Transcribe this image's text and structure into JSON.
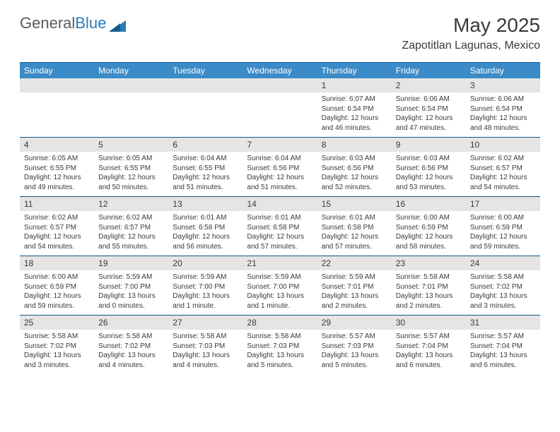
{
  "logo": {
    "part1": "General",
    "part2": "Blue"
  },
  "title": "May 2025",
  "location": "Zapotitlan Lagunas, Mexico",
  "colors": {
    "header_bar": "#3b8bc8",
    "daynum_bg": "#e5e5e5",
    "divider": "#0e5a8a",
    "text": "#3a3a3a",
    "logo_gray": "#5a5a5a",
    "logo_blue": "#2a7ab8"
  },
  "weekdays": [
    "Sunday",
    "Monday",
    "Tuesday",
    "Wednesday",
    "Thursday",
    "Friday",
    "Saturday"
  ],
  "weeks": [
    [
      null,
      null,
      null,
      null,
      {
        "n": "1",
        "sunrise": "6:07 AM",
        "sunset": "6:54 PM",
        "daylight": "12 hours and 46 minutes."
      },
      {
        "n": "2",
        "sunrise": "6:06 AM",
        "sunset": "6:54 PM",
        "daylight": "12 hours and 47 minutes."
      },
      {
        "n": "3",
        "sunrise": "6:06 AM",
        "sunset": "6:54 PM",
        "daylight": "12 hours and 48 minutes."
      }
    ],
    [
      {
        "n": "4",
        "sunrise": "6:05 AM",
        "sunset": "6:55 PM",
        "daylight": "12 hours and 49 minutes."
      },
      {
        "n": "5",
        "sunrise": "6:05 AM",
        "sunset": "6:55 PM",
        "daylight": "12 hours and 50 minutes."
      },
      {
        "n": "6",
        "sunrise": "6:04 AM",
        "sunset": "6:55 PM",
        "daylight": "12 hours and 51 minutes."
      },
      {
        "n": "7",
        "sunrise": "6:04 AM",
        "sunset": "6:56 PM",
        "daylight": "12 hours and 51 minutes."
      },
      {
        "n": "8",
        "sunrise": "6:03 AM",
        "sunset": "6:56 PM",
        "daylight": "12 hours and 52 minutes."
      },
      {
        "n": "9",
        "sunrise": "6:03 AM",
        "sunset": "6:56 PM",
        "daylight": "12 hours and 53 minutes."
      },
      {
        "n": "10",
        "sunrise": "6:02 AM",
        "sunset": "6:57 PM",
        "daylight": "12 hours and 54 minutes."
      }
    ],
    [
      {
        "n": "11",
        "sunrise": "6:02 AM",
        "sunset": "6:57 PM",
        "daylight": "12 hours and 54 minutes."
      },
      {
        "n": "12",
        "sunrise": "6:02 AM",
        "sunset": "6:57 PM",
        "daylight": "12 hours and 55 minutes."
      },
      {
        "n": "13",
        "sunrise": "6:01 AM",
        "sunset": "6:58 PM",
        "daylight": "12 hours and 56 minutes."
      },
      {
        "n": "14",
        "sunrise": "6:01 AM",
        "sunset": "6:58 PM",
        "daylight": "12 hours and 57 minutes."
      },
      {
        "n": "15",
        "sunrise": "6:01 AM",
        "sunset": "6:58 PM",
        "daylight": "12 hours and 57 minutes."
      },
      {
        "n": "16",
        "sunrise": "6:00 AM",
        "sunset": "6:59 PM",
        "daylight": "12 hours and 58 minutes."
      },
      {
        "n": "17",
        "sunrise": "6:00 AM",
        "sunset": "6:59 PM",
        "daylight": "12 hours and 59 minutes."
      }
    ],
    [
      {
        "n": "18",
        "sunrise": "6:00 AM",
        "sunset": "6:59 PM",
        "daylight": "12 hours and 59 minutes."
      },
      {
        "n": "19",
        "sunrise": "5:59 AM",
        "sunset": "7:00 PM",
        "daylight": "13 hours and 0 minutes."
      },
      {
        "n": "20",
        "sunrise": "5:59 AM",
        "sunset": "7:00 PM",
        "daylight": "13 hours and 1 minute."
      },
      {
        "n": "21",
        "sunrise": "5:59 AM",
        "sunset": "7:00 PM",
        "daylight": "13 hours and 1 minute."
      },
      {
        "n": "22",
        "sunrise": "5:59 AM",
        "sunset": "7:01 PM",
        "daylight": "13 hours and 2 minutes."
      },
      {
        "n": "23",
        "sunrise": "5:58 AM",
        "sunset": "7:01 PM",
        "daylight": "13 hours and 2 minutes."
      },
      {
        "n": "24",
        "sunrise": "5:58 AM",
        "sunset": "7:02 PM",
        "daylight": "13 hours and 3 minutes."
      }
    ],
    [
      {
        "n": "25",
        "sunrise": "5:58 AM",
        "sunset": "7:02 PM",
        "daylight": "13 hours and 3 minutes."
      },
      {
        "n": "26",
        "sunrise": "5:58 AM",
        "sunset": "7:02 PM",
        "daylight": "13 hours and 4 minutes."
      },
      {
        "n": "27",
        "sunrise": "5:58 AM",
        "sunset": "7:03 PM",
        "daylight": "13 hours and 4 minutes."
      },
      {
        "n": "28",
        "sunrise": "5:58 AM",
        "sunset": "7:03 PM",
        "daylight": "13 hours and 5 minutes."
      },
      {
        "n": "29",
        "sunrise": "5:57 AM",
        "sunset": "7:03 PM",
        "daylight": "13 hours and 5 minutes."
      },
      {
        "n": "30",
        "sunrise": "5:57 AM",
        "sunset": "7:04 PM",
        "daylight": "13 hours and 6 minutes."
      },
      {
        "n": "31",
        "sunrise": "5:57 AM",
        "sunset": "7:04 PM",
        "daylight": "13 hours and 6 minutes."
      }
    ]
  ],
  "labels": {
    "sunrise": "Sunrise:",
    "sunset": "Sunset:",
    "daylight": "Daylight:"
  }
}
